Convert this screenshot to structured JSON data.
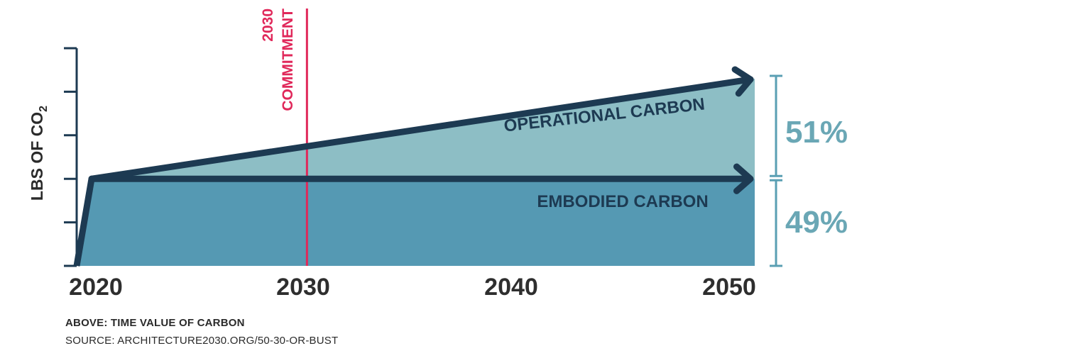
{
  "chart_data": {
    "type": "area",
    "ylabel_prefix": "LBS OF CO",
    "ylabel_subscript": "2",
    "x_ticks": [
      "2020",
      "2030",
      "2040",
      "2050"
    ],
    "xlim": [
      2019.2,
      2051
    ],
    "ylim": [
      0,
      5
    ],
    "y_tick_count": 6,
    "series": [
      {
        "name": "EMBODIED CARBON",
        "x": [
          2019.2,
          2019.9,
          2051
        ],
        "values": [
          0,
          2,
          2
        ],
        "color": "#5599b3"
      },
      {
        "name": "OPERATIONAL CARBON",
        "x": [
          2019.9,
          2051
        ],
        "values": [
          2,
          4.3
        ],
        "color": "#8dbec5"
      }
    ],
    "commitment": {
      "x": 2030,
      "label_line1": "2030",
      "label_line2": "COMMITMENT",
      "color": "#e0285a"
    },
    "shares": [
      {
        "label": "51%",
        "series": "OPERATIONAL CARBON"
      },
      {
        "label": "49%",
        "series": "EMBODIED CARBON"
      }
    ],
    "colors": {
      "outline": "#1d3a52",
      "axis": "#1d3a52",
      "share_text": "#6aa7b5",
      "bracket": "#5a9fb3",
      "tick_text": "#2e2e2e"
    }
  },
  "caption": {
    "title": "ABOVE: TIME VALUE OF CARBON",
    "source": "SOURCE: ARCHITECTURE2030.ORG/50-30-OR-BUST"
  }
}
